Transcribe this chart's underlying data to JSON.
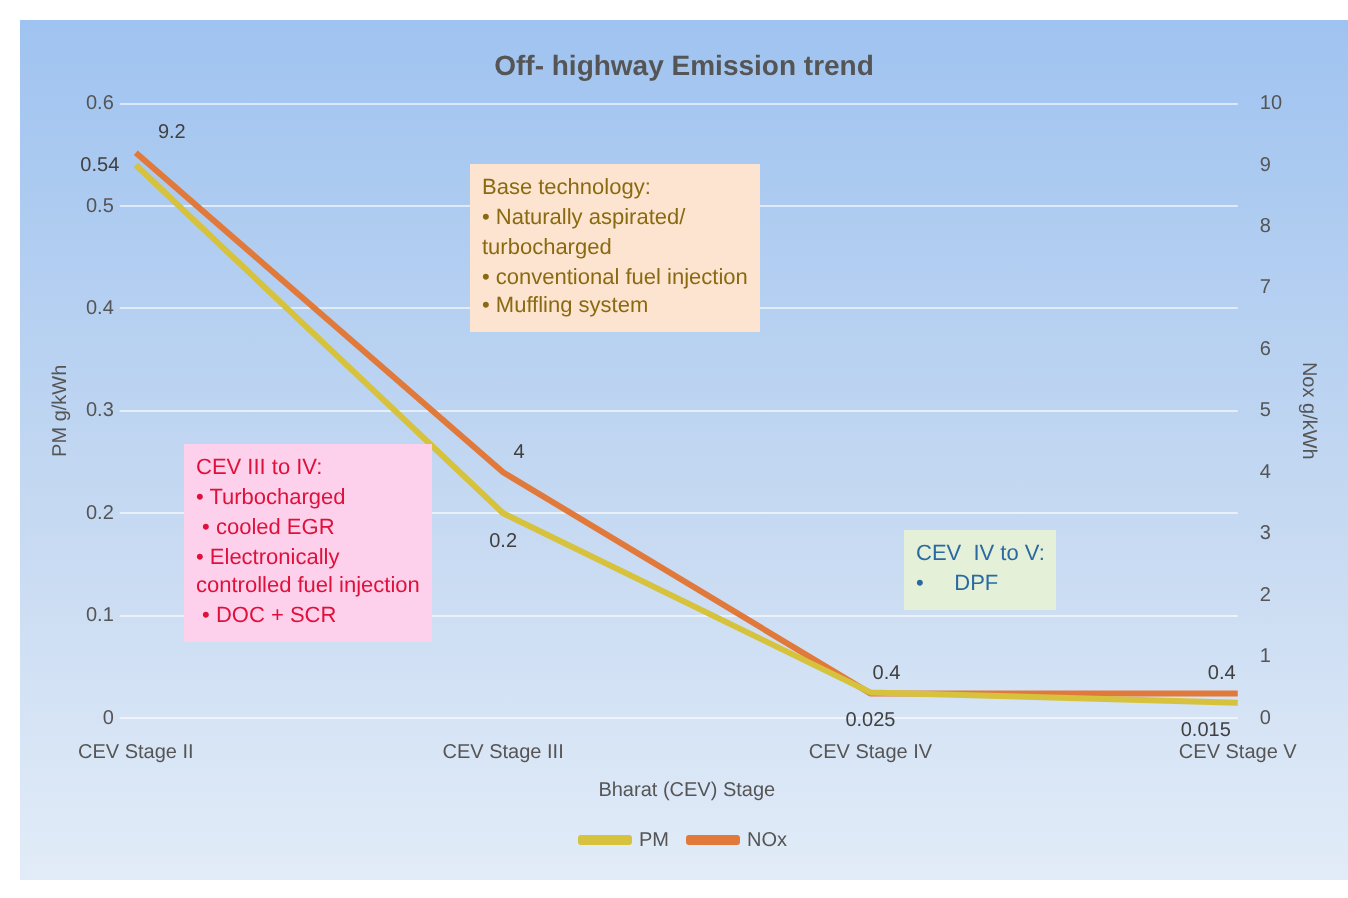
{
  "chart_data": {
    "type": "line",
    "title": "Off- highway Emission trend",
    "xlabel": "Bharat (CEV) Stage",
    "ylabel": "PM g/kWh",
    "y2label": "Nox g/kWh",
    "categories": [
      "CEV Stage II",
      "CEV Stage III",
      "CEV Stage IV",
      "CEV Stage V"
    ],
    "series": [
      {
        "name": "PM",
        "color": "#d6c23c",
        "values": [
          0.54,
          0.2,
          0.025,
          0.015
        ]
      },
      {
        "name": "NOx",
        "color": "#e0793a",
        "values": [
          9.2,
          4,
          0.4,
          0.4
        ],
        "axis": "y2"
      }
    ],
    "ylim": [
      0,
      0.6
    ],
    "yticks": [
      0,
      0.1,
      0.2,
      0.3,
      0.4,
      0.5,
      0.6
    ],
    "y2lim": [
      0,
      10
    ],
    "y2ticks": [
      0,
      1,
      2,
      3,
      4,
      5,
      6,
      7,
      8,
      9,
      10
    ],
    "grid": "y",
    "legend": "bottom",
    "data_labels": true,
    "marker": "none",
    "line_style": "solid",
    "annotations": [
      "Base technology:\n• Naturally aspirated/\nturbocharged\n• conventional fuel injection\n• Muffling system",
      "CEV III to IV:\n• Turbocharged\n • cooled EGR\n• Electronically\ncontrolled fuel injection\n • DOC + SCR",
      "CEV  IV to V:\n•     DPF"
    ]
  }
}
